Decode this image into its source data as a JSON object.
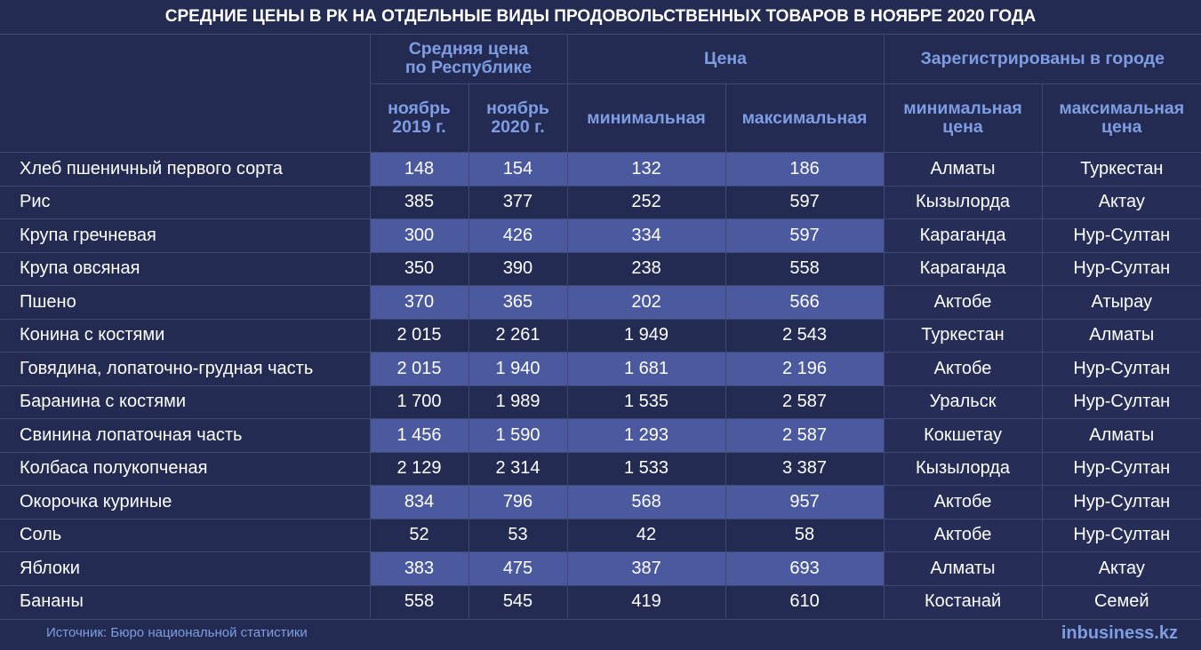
{
  "title": "СРЕДНИЕ ЦЕНЫ В РК НА ОТДЕЛЬНЫЕ ВИДЫ ПРОДОВОЛЬСТВЕННЫХ ТОВАРОВ В НОЯБРЕ 2020 ГОДА",
  "headers": {
    "group_avg": [
      "Средняя цена",
      "по Республике"
    ],
    "group_price": "Цена",
    "group_city": "Зарегистрированы в городе",
    "sub": [
      [
        "ноябрь",
        "2019 г."
      ],
      [
        "ноябрь",
        "2020 г."
      ],
      [
        "минимальная"
      ],
      [
        "максимальная"
      ],
      [
        "минимальная",
        "цена"
      ],
      [
        "максимальная",
        "цена"
      ]
    ]
  },
  "rows": [
    [
      "Хлеб пшеничный первого сорта",
      "148",
      "154",
      "132",
      "186",
      "Алматы",
      "Туркестан"
    ],
    [
      "Рис",
      "385",
      "377",
      "252",
      "597",
      "Кызылорда",
      "Актау"
    ],
    [
      "Крупа гречневая",
      "300",
      "426",
      "334",
      "597",
      "Караганда",
      "Нур-Султан"
    ],
    [
      "Крупа овсяная",
      "350",
      "390",
      "238",
      "558",
      "Караганда",
      "Нур-Султан"
    ],
    [
      "Пшено",
      "370",
      "365",
      "202",
      "566",
      "Актобе",
      "Атырау"
    ],
    [
      "Конина с костями",
      "2 015",
      "2 261",
      "1 949",
      "2 543",
      "Туркестан",
      "Алматы"
    ],
    [
      "Говядина, лопаточно-грудная часть",
      "2 015",
      "1 940",
      "1 681",
      "2 196",
      "Актобе",
      "Нур-Султан"
    ],
    [
      "Баранина с костями",
      "1 700",
      "1 989",
      "1 535",
      "2 587",
      "Уральск",
      "Нур-Султан"
    ],
    [
      "Свинина лопаточная часть",
      "1 456",
      "1 590",
      "1 293",
      "2 587",
      "Кокшетау",
      "Алматы"
    ],
    [
      "Колбаса полукопченая",
      "2 129",
      "2 314",
      "1 533",
      "3 387",
      "Кызылорда",
      "Нур-Султан"
    ],
    [
      "Окорочка куриные",
      "834",
      "796",
      "568",
      "957",
      "Актобе",
      "Нур-Султан"
    ],
    [
      "Соль",
      "52",
      "53",
      "42",
      "58",
      "Актобе",
      "Нур-Султан"
    ],
    [
      "Яблоки",
      "383",
      "475",
      "387",
      "693",
      "Алматы",
      "Актау"
    ],
    [
      "Бананы",
      "558",
      "545",
      "419",
      "610",
      "Костанай",
      "Семей"
    ]
  ],
  "footer": {
    "source": "Источник: Бюро национальной статистики",
    "logo_prefix": "in",
    "logo_rest": "business.kz"
  },
  "colors": {
    "background": "#232b52",
    "highlight_row": "#4b599f",
    "header_text": "#7f9de3"
  }
}
